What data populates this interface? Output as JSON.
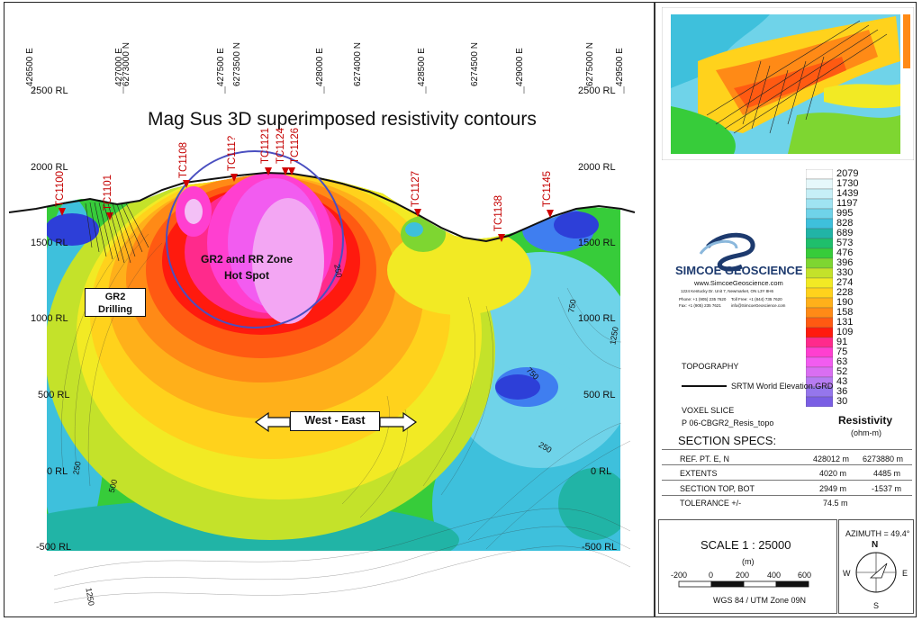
{
  "title": "Mag Sus 3D superimposed resistivity contours",
  "easting_ticks": [
    "426500 E",
    "427000 E",
    "427500 E",
    "428000 E",
    "428500 E",
    "429000 E",
    "429500 E"
  ],
  "northing_ticks": [
    "6273000 N",
    "6273500 N",
    "6274000 N",
    "6274500 N",
    "6275000 N"
  ],
  "left_rl": [
    "2500 RL",
    "2000 RL",
    "1500 RL",
    "1000 RL",
    "500 RL",
    "0 RL",
    "-500 RL"
  ],
  "right_rl": [
    "2500 RL",
    "2000 RL",
    "1500 RL",
    "1000 RL",
    "500 RL",
    "0 RL",
    "-500 RL"
  ],
  "drillholes": [
    "TC1100",
    "TC1101",
    "TC1108",
    "TC111?",
    "TC1121",
    "TC1124",
    "TC1126",
    "TC1127",
    "TC1138",
    "TC1145"
  ],
  "contour_values": [
    "250",
    "500",
    "250",
    "250",
    "1250",
    "750",
    "1250",
    "750"
  ],
  "hotspot_label": [
    "GR2 and RR Zone",
    "Hot Spot"
  ],
  "drilling_label": [
    "GR2",
    "Drilling"
  ],
  "direction_label": "West - East",
  "legend": {
    "title": "Resistivity",
    "unit": "(ohm-m)",
    "values": [
      "2079",
      "1730",
      "1439",
      "1197",
      "995",
      "828",
      "689",
      "573",
      "476",
      "396",
      "330",
      "274",
      "228",
      "190",
      "158",
      "131",
      "109",
      "91",
      "75",
      "63",
      "52",
      "43",
      "36",
      "30"
    ],
    "colors": [
      "#ffffff",
      "#e6f8fb",
      "#c6eff7",
      "#9fe3f2",
      "#6fd3e9",
      "#3ec0dc",
      "#21b4a6",
      "#1fbf6b",
      "#37cc3a",
      "#7ed631",
      "#c4e22a",
      "#f2ea24",
      "#ffd21c",
      "#ffb01a",
      "#ff8a16",
      "#ff5a12",
      "#ff1a0e",
      "#ff2a8c",
      "#ff3fd0",
      "#f25cf0",
      "#d96ef2",
      "#b77cf2",
      "#9576ec",
      "#7a5ee4"
    ]
  },
  "company": {
    "name": "SIMCOE GEOSCIENCE",
    "web": "www.SimcoeGeoscience.com",
    "address": "1224 Kentucky Dr. Unit 7, Newmarket, ON L3Y 8H6",
    "phone": "Phone: +1 (905) 235 7620",
    "fax": "Fax: +1 (905) 235 7621",
    "tollfree": "Toll Free: +1 (844) 735 7620",
    "email": "info@SimcoeGeoscience.com"
  },
  "topography": {
    "heading": "TOPOGRAPHY",
    "item": "SRTM World Elevation.GRD"
  },
  "voxel": {
    "heading": "VOXEL SLICE",
    "item": "P 06-CBGR2_Resis_topo"
  },
  "specs": {
    "heading": "SECTION SPECS:",
    "rows": [
      {
        "label": "REF. PT.  E, N",
        "v1": "428012 m",
        "v2": "6273880 m"
      },
      {
        "label": "EXTENTS",
        "v1": "4020 m",
        "v2": "4485 m"
      },
      {
        "label": "SECTION TOP, BOT",
        "v1": "2949 m",
        "v2": "-1537 m"
      },
      {
        "label": "TOLERANCE  +/-",
        "v1": "74.5 m",
        "v2": ""
      }
    ]
  },
  "scale": {
    "text": "SCALE   1 : 25000",
    "unit": "(m)",
    "bar_labels": [
      "-200",
      "0",
      "200",
      "400",
      "600"
    ],
    "datum": "WGS 84 / UTM Zone 09N"
  },
  "azimuth": {
    "text": "AZIMUTH = 49.4°",
    "n": "N",
    "s": "S",
    "e": "E",
    "w": "W"
  }
}
